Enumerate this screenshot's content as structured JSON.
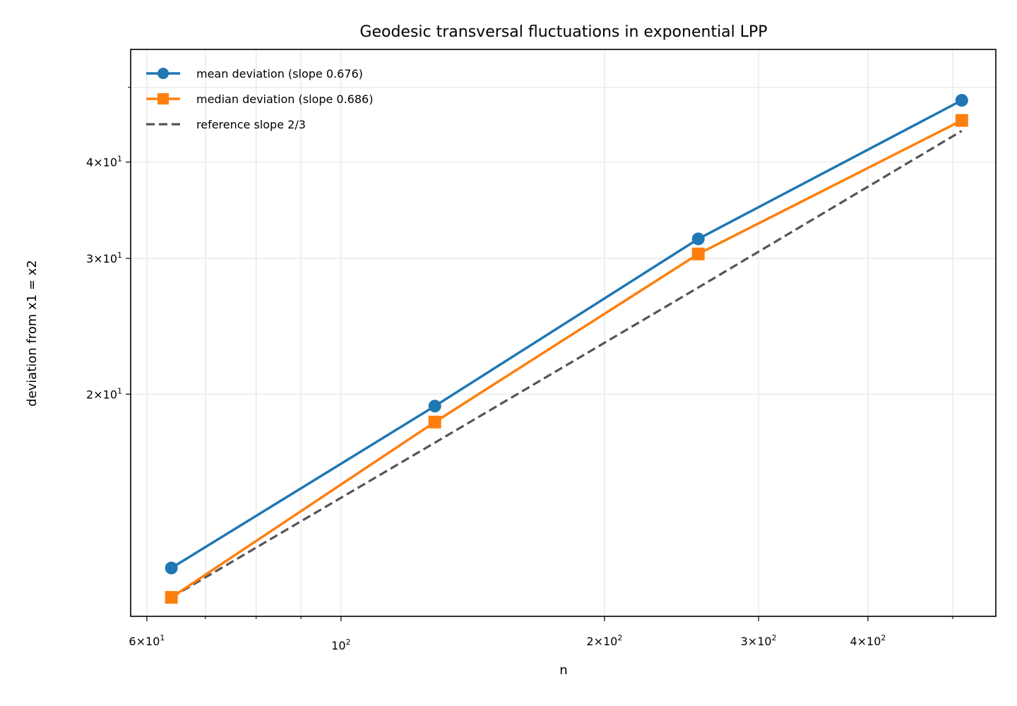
{
  "chart_data": {
    "type": "line",
    "title": "Geodesic transversal fluctuations in exponential LPP",
    "xlabel": "n",
    "ylabel": "deviation from x1 = x2",
    "xscale": "log",
    "yscale": "log",
    "xlim": [
      57.5,
      560
    ],
    "ylim": [
      10.3,
      56
    ],
    "x": [
      64,
      128,
      256,
      512
    ],
    "series": [
      {
        "name": "mean deviation (slope 0.676)",
        "color": "#1f77b4",
        "marker": "circle",
        "linestyle": "solid",
        "values": [
          11.9,
          19.3,
          31.8,
          48.1
        ]
      },
      {
        "name": "median deviation (slope 0.686)",
        "color": "#ff7f0e",
        "marker": "square",
        "linestyle": "solid",
        "values": [
          10.9,
          18.4,
          30.4,
          45.3
        ]
      },
      {
        "name": "reference slope 2/3",
        "color": "#555555",
        "marker": "none",
        "linestyle": "dashed",
        "values": [
          10.9,
          17.3,
          27.5,
          43.9
        ]
      }
    ],
    "xticks": [
      {
        "value": 60,
        "label": "6×10¹",
        "mant": "6",
        "exp": "1"
      },
      {
        "value": 100,
        "label": "10²",
        "mant": "",
        "exp": "2"
      },
      {
        "value": 200,
        "label": "2×10²",
        "mant": "2",
        "exp": "2"
      },
      {
        "value": 300,
        "label": "3×10²",
        "mant": "3",
        "exp": "2"
      },
      {
        "value": 400,
        "label": "4×10²",
        "mant": "4",
        "exp": "2"
      }
    ],
    "xminor": [
      70,
      80,
      90,
      500
    ],
    "yticks": [
      {
        "value": 20,
        "label": "2×10¹",
        "mant": "2",
        "exp": "1"
      },
      {
        "value": 30,
        "label": "3×10¹",
        "mant": "3",
        "exp": "1"
      },
      {
        "value": 40,
        "label": "4×10¹",
        "mant": "4",
        "exp": "1"
      }
    ],
    "yminor": [
      50
    ],
    "grid": true,
    "legend_position": "upper left"
  }
}
